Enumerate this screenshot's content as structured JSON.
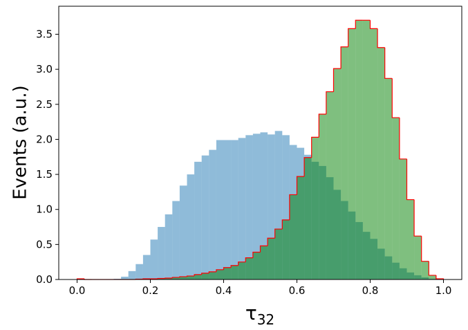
{
  "chart_data": {
    "type": "histogram",
    "ylabel": "Events (a.u.)",
    "xlabel": {
      "symbol": "τ",
      "subscript": "32"
    },
    "bins": [
      0,
      0.02,
      0.04,
      0.06,
      0.08,
      0.1,
      0.12,
      0.14,
      0.16,
      0.18,
      0.2,
      0.22,
      0.24,
      0.26,
      0.28,
      0.3,
      0.32,
      0.34,
      0.36,
      0.38,
      0.4,
      0.42,
      0.44,
      0.46,
      0.48,
      0.5,
      0.52,
      0.54,
      0.56,
      0.58,
      0.6,
      0.62,
      0.64,
      0.66,
      0.68,
      0.7,
      0.72,
      0.74,
      0.76,
      0.78,
      0.8,
      0.82,
      0.84,
      0.86,
      0.88,
      0.9,
      0.92,
      0.94,
      0.96,
      0.98,
      1
    ],
    "series": [
      {
        "color": "#1f77b4",
        "alpha": 0.5,
        "values": [
          0,
          0,
          0,
          0,
          0.005,
          0.01,
          0.04,
          0.12,
          0.22,
          0.35,
          0.57,
          0.75,
          0.93,
          1.12,
          1.34,
          1.5,
          1.68,
          1.77,
          1.85,
          1.99,
          1.99,
          1.99,
          2.02,
          2.06,
          2.08,
          2.1,
          2.07,
          2.12,
          2.06,
          1.92,
          1.88,
          1.78,
          1.68,
          1.62,
          1.46,
          1.28,
          1.12,
          0.97,
          0.82,
          0.68,
          0.58,
          0.44,
          0.33,
          0.24,
          0.16,
          0.1,
          0.06,
          0.03,
          0.01,
          0
        ]
      },
      {
        "color": "#008000",
        "alpha": 0.5,
        "edgecolor": "#ff0000",
        "values": [
          0.01,
          0,
          0,
          0,
          0,
          0,
          0,
          0,
          0.005,
          0.01,
          0.01,
          0.015,
          0.02,
          0.03,
          0.04,
          0.05,
          0.07,
          0.09,
          0.11,
          0.14,
          0.17,
          0.2,
          0.25,
          0.31,
          0.39,
          0.48,
          0.59,
          0.72,
          0.85,
          1.21,
          1.47,
          1.74,
          2.03,
          2.36,
          2.68,
          3.01,
          3.32,
          3.58,
          3.7,
          3.7,
          3.58,
          3.31,
          2.87,
          2.31,
          1.72,
          1.14,
          0.62,
          0.26,
          0.06,
          0.01
        ]
      }
    ],
    "xlim": [
      -0.05,
      1.05
    ],
    "ylim": [
      0,
      3.9
    ],
    "xticks": [
      {
        "value": 0,
        "label": "0.0"
      },
      0.2,
      0.4,
      0.6,
      0.8,
      {
        "value": 1,
        "label": "1.0"
      }
    ],
    "yticks": [
      {
        "value": 0,
        "label": "0.0"
      },
      0.5,
      {
        "value": 1,
        "label": "1.0"
      },
      1.5,
      {
        "value": 2,
        "label": "2.0"
      },
      2.5,
      {
        "value": 3,
        "label": "3.0"
      },
      3.5
    ]
  }
}
